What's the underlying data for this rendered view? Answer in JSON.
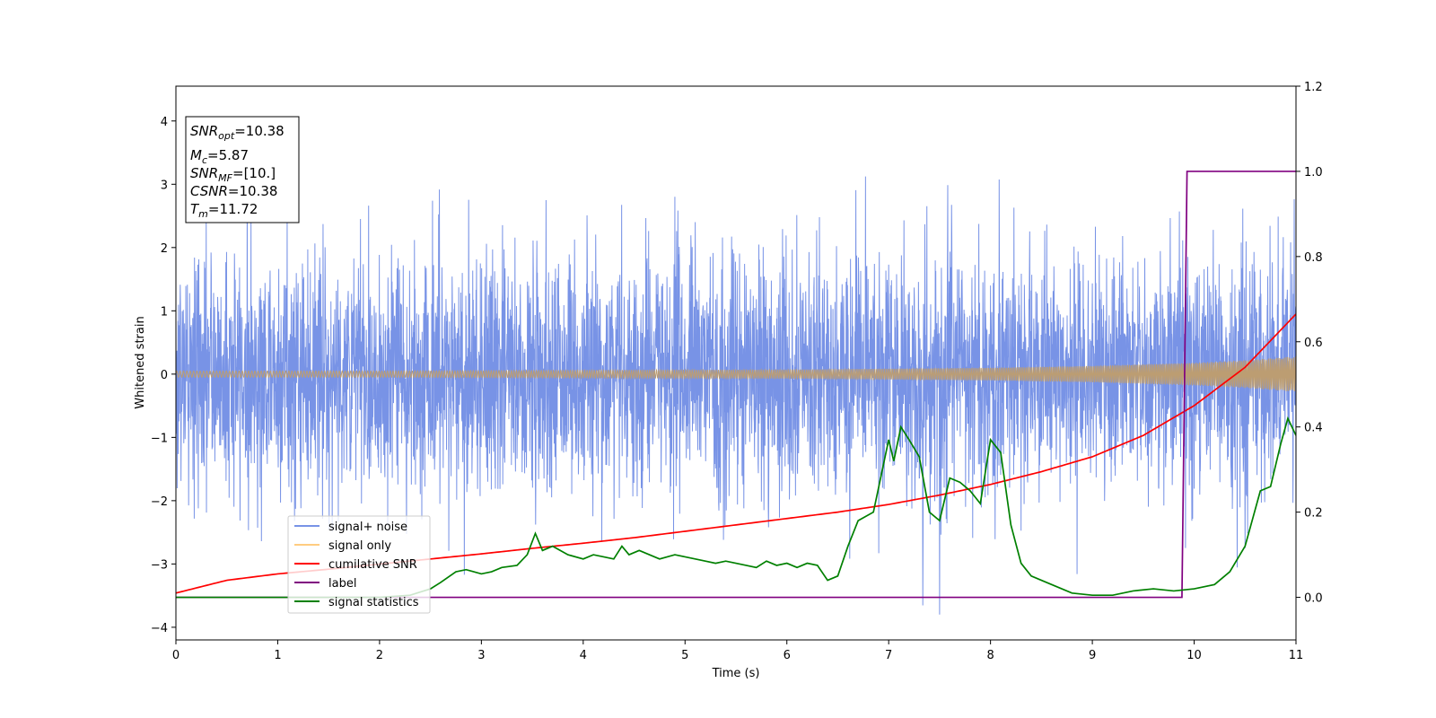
{
  "chart_data": {
    "type": "line",
    "xlabel": "Time (s)",
    "ylabel": "Whitened strain",
    "xlim": [
      0,
      11
    ],
    "ylim": [
      -4.2,
      4.55
    ],
    "ylim_right": [
      -0.1,
      1.2
    ],
    "x_ticks": [
      0,
      1,
      2,
      3,
      4,
      5,
      6,
      7,
      8,
      9,
      10,
      11
    ],
    "y_ticks": [
      4,
      3,
      2,
      1,
      0,
      -1,
      -2,
      -3,
      -4
    ],
    "y_ticks_right": [
      1.2,
      1.0,
      0.8,
      0.6,
      0.4,
      0.2,
      0.0
    ],
    "legend_position": "lower-left",
    "legend": [
      "signal+ noise",
      "signal only",
      "cumilative SNR",
      "label",
      "signal statistics"
    ],
    "annotation": {
      "snr_opt": "=10.38",
      "mc": "=5.87",
      "snr_mf": "=[10.]",
      "csnr": "=10.38",
      "tm": "=11.72"
    },
    "series": [
      {
        "name": "signal+ noise",
        "axis": "left",
        "color": "#7893e6",
        "description": "whitened noise envelope, std approx 0.95, peaks up to approx 3.6",
        "std": 0.95
      },
      {
        "name": "signal only",
        "axis": "left",
        "color": "#bc9d72",
        "amplitude_envelope": {
          "x": [
            0,
            2,
            4,
            6,
            8,
            9,
            10,
            10.5,
            11
          ],
          "y": [
            0.05,
            0.05,
            0.06,
            0.07,
            0.1,
            0.13,
            0.18,
            0.22,
            0.28
          ]
        }
      },
      {
        "name": "cumilative SNR",
        "axis": "right",
        "color": "#ff0000",
        "x": [
          0,
          0.5,
          1,
          1.5,
          2,
          2.5,
          3,
          3.5,
          4,
          4.5,
          5,
          5.5,
          6,
          6.5,
          7,
          7.5,
          8,
          8.5,
          9,
          9.5,
          10,
          10.5,
          11
        ],
        "y": [
          0.01,
          0.04,
          0.055,
          0.066,
          0.078,
          0.09,
          0.102,
          0.115,
          0.127,
          0.14,
          0.155,
          0.17,
          0.185,
          0.2,
          0.218,
          0.24,
          0.265,
          0.295,
          0.33,
          0.38,
          0.45,
          0.54,
          0.665
        ]
      },
      {
        "name": "label",
        "axis": "right",
        "color": "#800080",
        "x": [
          0,
          9.88,
          9.93,
          11
        ],
        "y": [
          0,
          0,
          1,
          1
        ]
      },
      {
        "name": "signal statistics",
        "axis": "right",
        "color": "#008000",
        "x": [
          0,
          0.5,
          1,
          1.5,
          2,
          2.3,
          2.5,
          2.6,
          2.75,
          2.85,
          3.0,
          3.1,
          3.2,
          3.35,
          3.45,
          3.53,
          3.6,
          3.7,
          3.85,
          4.0,
          4.1,
          4.2,
          4.3,
          4.38,
          4.45,
          4.55,
          4.65,
          4.75,
          4.9,
          5.0,
          5.1,
          5.2,
          5.3,
          5.4,
          5.5,
          5.6,
          5.7,
          5.8,
          5.9,
          6.0,
          6.1,
          6.2,
          6.3,
          6.4,
          6.5,
          6.6,
          6.7,
          6.85,
          7.0,
          7.05,
          7.12,
          7.2,
          7.3,
          7.4,
          7.5,
          7.6,
          7.7,
          7.8,
          7.9,
          8.0,
          8.1,
          8.2,
          8.3,
          8.4,
          8.5,
          8.6,
          8.8,
          9.0,
          9.2,
          9.4,
          9.6,
          9.8,
          10.0,
          10.2,
          10.35,
          10.5,
          10.65,
          10.75,
          10.85,
          10.92,
          11.0
        ],
        "y": [
          0.0,
          0.0,
          0.0,
          0.0,
          0.0,
          0.005,
          0.02,
          0.035,
          0.06,
          0.065,
          0.055,
          0.06,
          0.07,
          0.075,
          0.1,
          0.15,
          0.11,
          0.12,
          0.1,
          0.09,
          0.1,
          0.095,
          0.09,
          0.12,
          0.1,
          0.11,
          0.1,
          0.09,
          0.1,
          0.095,
          0.09,
          0.085,
          0.08,
          0.085,
          0.08,
          0.075,
          0.07,
          0.085,
          0.075,
          0.08,
          0.07,
          0.08,
          0.075,
          0.04,
          0.05,
          0.12,
          0.18,
          0.2,
          0.37,
          0.32,
          0.4,
          0.37,
          0.33,
          0.2,
          0.18,
          0.28,
          0.27,
          0.25,
          0.22,
          0.37,
          0.34,
          0.17,
          0.08,
          0.05,
          0.04,
          0.03,
          0.01,
          0.005,
          0.005,
          0.015,
          0.02,
          0.015,
          0.02,
          0.03,
          0.06,
          0.12,
          0.25,
          0.26,
          0.36,
          0.42,
          0.38
        ]
      }
    ]
  }
}
